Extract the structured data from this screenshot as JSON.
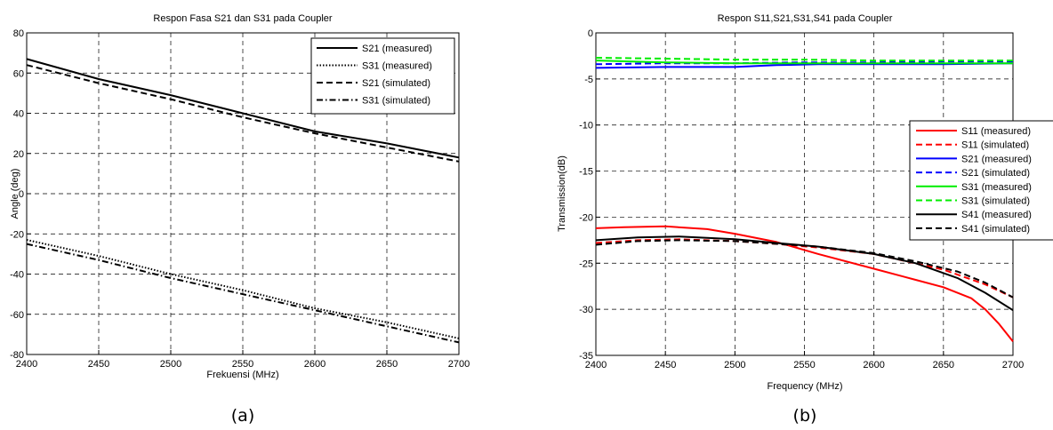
{
  "chart_data": [
    {
      "type": "line",
      "title": "Respon Fasa S21 dan S31 pada Coupler",
      "xlabel": "Frekuensi (MHz)",
      "ylabel": "Angle (deg)",
      "xlim": [
        2400,
        2700
      ],
      "ylim": [
        -80,
        80
      ],
      "xticks": [
        2400,
        2450,
        2500,
        2550,
        2600,
        2650,
        2700
      ],
      "yticks": [
        -80,
        -60,
        -40,
        -20,
        0,
        20,
        40,
        60,
        80
      ],
      "grid": true,
      "legend": "top-right",
      "caption": "(a)",
      "series": [
        {
          "name": "S21 (measured)",
          "color": "#000000",
          "style": "solid",
          "x": [
            2400,
            2450,
            2500,
            2550,
            2600,
            2650,
            2700
          ],
          "y": [
            67,
            57,
            49,
            40,
            31,
            25,
            18
          ]
        },
        {
          "name": "S31 (measured)",
          "color": "#000000",
          "style": "dotted",
          "x": [
            2400,
            2450,
            2500,
            2550,
            2600,
            2650,
            2700
          ],
          "y": [
            -23,
            -31,
            -40,
            -48,
            -57,
            -64,
            -72
          ]
        },
        {
          "name": "S21 (simulated)",
          "color": "#000000",
          "style": "dashed",
          "x": [
            2400,
            2450,
            2500,
            2550,
            2600,
            2650,
            2700
          ],
          "y": [
            64,
            55,
            47,
            38,
            30,
            23,
            16
          ]
        },
        {
          "name": "S31 (simulated)",
          "color": "#000000",
          "style": "dashdot",
          "x": [
            2400,
            2450,
            2500,
            2550,
            2600,
            2650,
            2700
          ],
          "y": [
            -25,
            -33,
            -42,
            -50,
            -58,
            -66,
            -74
          ]
        }
      ]
    },
    {
      "type": "line",
      "title": "Respon S11,S21,S31,S41 pada Coupler",
      "xlabel": "Frequency (MHz)",
      "ylabel": "Transmission(dB)",
      "xlim": [
        2400,
        2700
      ],
      "ylim": [
        -35,
        0
      ],
      "xticks": [
        2400,
        2450,
        2500,
        2550,
        2600,
        2650,
        2700
      ],
      "yticks": [
        -35,
        -30,
        -25,
        -20,
        -15,
        -10,
        -5,
        0
      ],
      "grid": true,
      "legend": "right",
      "caption": "(b)",
      "series": [
        {
          "name": "S11 (measured)",
          "color": "#ff0000",
          "style": "solid",
          "x": [
            2400,
            2420,
            2450,
            2480,
            2500,
            2530,
            2560,
            2600,
            2630,
            2650,
            2670,
            2680,
            2690,
            2700
          ],
          "y": [
            -21.2,
            -21.1,
            -21.0,
            -21.3,
            -21.8,
            -22.7,
            -24.0,
            -25.6,
            -26.8,
            -27.6,
            -28.8,
            -30.0,
            -31.6,
            -33.5
          ]
        },
        {
          "name": "S11 (simulated)",
          "color": "#ff0000",
          "style": "dashed",
          "x": [
            2400,
            2430,
            2460,
            2500,
            2530,
            2560,
            2600,
            2650,
            2680,
            2700
          ],
          "y": [
            -22.8,
            -22.5,
            -22.4,
            -22.6,
            -22.9,
            -23.3,
            -24.0,
            -25.7,
            -27.3,
            -28.7
          ]
        },
        {
          "name": "S21 (measured)",
          "color": "#0000ff",
          "style": "solid",
          "x": [
            2400,
            2450,
            2500,
            2530,
            2560,
            2600,
            2650,
            2700
          ],
          "y": [
            -3.8,
            -3.7,
            -3.7,
            -3.5,
            -3.4,
            -3.4,
            -3.4,
            -3.3
          ]
        },
        {
          "name": "S21 (simulated)",
          "color": "#0000ff",
          "style": "dashed",
          "x": [
            2400,
            2450,
            2500,
            2550,
            2600,
            2650,
            2700
          ],
          "y": [
            -3.4,
            -3.3,
            -3.3,
            -3.2,
            -3.2,
            -3.1,
            -3.1
          ]
        },
        {
          "name": "S31 (measured)",
          "color": "#00ee00",
          "style": "solid",
          "x": [
            2400,
            2450,
            2500,
            2550,
            2600,
            2650,
            2700
          ],
          "y": [
            -3.0,
            -3.2,
            -3.3,
            -3.3,
            -3.3,
            -3.3,
            -3.3
          ]
        },
        {
          "name": "S31 (simulated)",
          "color": "#00ee00",
          "style": "dashed",
          "x": [
            2400,
            2450,
            2500,
            2550,
            2600,
            2650,
            2700
          ],
          "y": [
            -2.7,
            -2.8,
            -2.9,
            -2.9,
            -3.0,
            -3.0,
            -3.0
          ]
        },
        {
          "name": "S41 (measured)",
          "color": "#000000",
          "style": "solid",
          "x": [
            2400,
            2430,
            2460,
            2500,
            2530,
            2560,
            2600,
            2630,
            2660,
            2680,
            2700
          ],
          "y": [
            -22.5,
            -22.2,
            -22.1,
            -22.4,
            -22.8,
            -23.2,
            -24.0,
            -25.0,
            -26.6,
            -28.2,
            -30.1
          ]
        },
        {
          "name": "S41 (simulated)",
          "color": "#000000",
          "style": "dashed",
          "x": [
            2400,
            2430,
            2460,
            2500,
            2530,
            2560,
            2600,
            2630,
            2660,
            2680,
            2700
          ],
          "y": [
            -23.0,
            -22.6,
            -22.5,
            -22.6,
            -22.9,
            -23.2,
            -23.9,
            -24.8,
            -25.9,
            -27.1,
            -28.7
          ]
        }
      ]
    }
  ]
}
